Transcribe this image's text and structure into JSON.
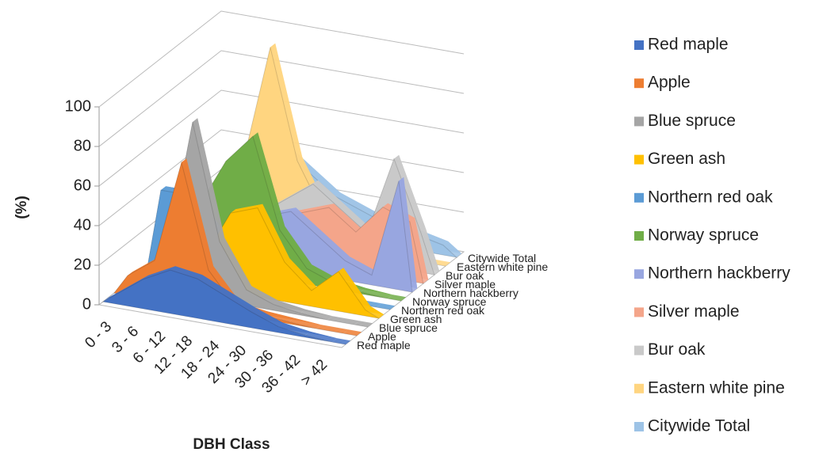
{
  "chart_data": {
    "type": "area3d",
    "x_label": "DBH Class",
    "y_label": "(%)",
    "categories": [
      "0 - 3",
      "3 - 6",
      "6 - 12",
      "12 - 18",
      "18 - 24",
      "24 - 30",
      "30 - 36",
      "36 - 42",
      "> 42"
    ],
    "ylim": [
      0,
      100
    ],
    "yticks": [
      0,
      20,
      40,
      60,
      80,
      100
    ],
    "grid": true,
    "series": [
      {
        "name": "Red maple",
        "color": "#4472c4",
        "values": [
          5,
          15,
          22,
          20,
          14,
          8,
          3,
          1,
          0
        ]
      },
      {
        "name": "Apple",
        "color": "#ed7d31",
        "values": [
          10,
          20,
          72,
          20,
          4,
          2,
          1,
          0,
          0
        ]
      },
      {
        "name": "Blue spruce",
        "color": "#a5a5a5",
        "values": [
          5,
          15,
          88,
          30,
          8,
          3,
          1,
          0,
          0
        ]
      },
      {
        "name": "Green ash",
        "color": "#ffc000",
        "values": [
          2,
          5,
          15,
          40,
          45,
          20,
          8,
          20,
          3
        ]
      },
      {
        "name": "Northern red oak",
        "color": "#5b9bd5",
        "values": [
          40,
          40,
          25,
          10,
          5,
          2,
          1,
          0,
          0
        ]
      },
      {
        "name": "Norway spruce",
        "color": "#70ad47",
        "values": [
          10,
          30,
          55,
          70,
          25,
          8,
          3,
          1,
          0
        ]
      },
      {
        "name": "Northern hackberry",
        "color": "#98a6e0",
        "values": [
          3,
          8,
          15,
          25,
          30,
          20,
          10,
          5,
          55
        ]
      },
      {
        "name": "Silver maple",
        "color": "#f4a58a",
        "values": [
          5,
          10,
          15,
          20,
          25,
          30,
          20,
          35,
          30
        ]
      },
      {
        "name": "Bur oak",
        "color": "#c9c9c9",
        "values": [
          5,
          10,
          15,
          25,
          35,
          25,
          15,
          55,
          20
        ]
      },
      {
        "name": "Eastern white pine",
        "color": "#ffd580",
        "values": [
          10,
          35,
          95,
          40,
          15,
          5,
          2,
          1,
          0
        ]
      },
      {
        "name": "Citywide Total",
        "color": "#9dc3e6",
        "values": [
          15,
          30,
          40,
          30,
          20,
          15,
          10,
          8,
          5
        ]
      }
    ]
  }
}
